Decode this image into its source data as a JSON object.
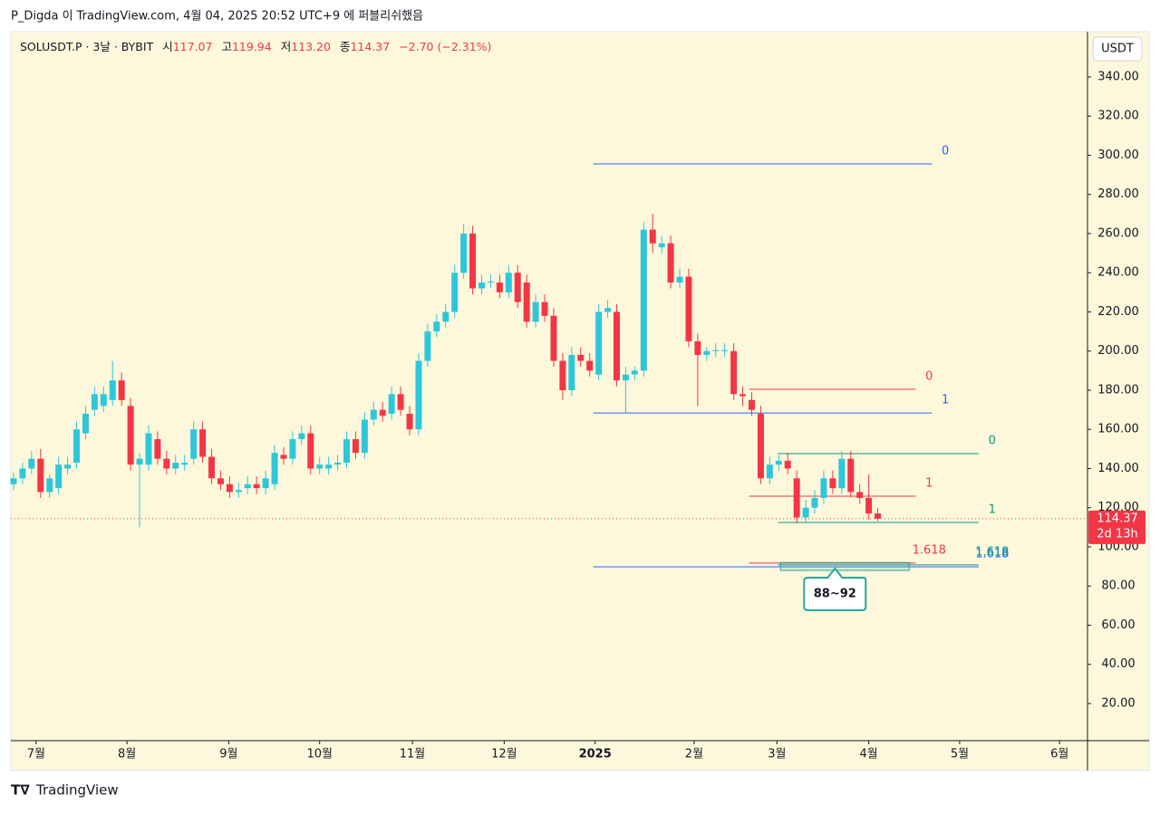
{
  "header": {
    "published": "P_Digda 이 TradingView.com, 4월 04, 2025 20:52 UTC+9 에 퍼블리쉬했음"
  },
  "footer": {
    "brand": "TradingView"
  },
  "chart_data": {
    "type": "candlestick",
    "legend": {
      "symbol": "SOLUSDT.P · 3날 · BYBIT",
      "open_label": "시",
      "open": "117.07",
      "high_label": "고",
      "high": "119.94",
      "low_label": "저",
      "low": "113.20",
      "close_label": "종",
      "close": "114.37",
      "change": "−2.70 (−2.31%)"
    },
    "currency": "USDT",
    "countdown": "2d 13h",
    "up_color": "#2ec7da",
    "down_color": "#f23645",
    "background": "#fdf8dc",
    "open": [
      132,
      135,
      140,
      145,
      128,
      130,
      140,
      143,
      158,
      170,
      172,
      175,
      185,
      172,
      142,
      142,
      155,
      145,
      140,
      142,
      145,
      160,
      146,
      135,
      132,
      128,
      130,
      132,
      130,
      132,
      147,
      145,
      155,
      158,
      140,
      140,
      142,
      143,
      155,
      148,
      165,
      170,
      168,
      178,
      168,
      160,
      195,
      210,
      215,
      220,
      240,
      260,
      232,
      235,
      235,
      230,
      240,
      235,
      215,
      225,
      218,
      195,
      180,
      198,
      195,
      188,
      220,
      220,
      185,
      188,
      190,
      262,
      253,
      255,
      235,
      238,
      205,
      198,
      200,
      200,
      200,
      178,
      175,
      168,
      135,
      142,
      144,
      135,
      115,
      120,
      125,
      135,
      130,
      145,
      128,
      125,
      117.07
    ],
    "high": [
      138,
      143,
      149,
      150,
      137,
      146,
      146,
      164,
      172,
      182,
      182,
      195,
      189,
      176,
      148,
      162,
      159,
      149,
      147,
      147,
      164,
      164,
      150,
      139,
      136,
      133,
      136,
      136,
      139,
      152,
      151,
      159,
      162,
      162,
      146,
      146,
      147,
      159,
      159,
      169,
      174,
      174,
      182,
      182,
      172,
      199,
      214,
      219,
      224,
      244,
      265,
      264,
      239,
      239,
      239,
      244,
      244,
      239,
      229,
      229,
      222,
      199,
      202,
      202,
      199,
      224,
      226,
      224,
      192,
      192,
      266,
      270,
      259,
      259,
      242,
      242,
      209,
      202,
      204,
      204,
      204,
      182,
      179,
      172,
      146,
      147,
      148,
      139,
      124,
      129,
      139,
      139,
      149,
      149,
      132,
      137,
      119.94
    ],
    "low": [
      129,
      132,
      137,
      125,
      125,
      127,
      137,
      140,
      155,
      167,
      169,
      172,
      172,
      139,
      110,
      139,
      142,
      137,
      137,
      139,
      142,
      143,
      132,
      129,
      125,
      125,
      127,
      127,
      127,
      129,
      142,
      142,
      152,
      137,
      137,
      137,
      139,
      140,
      145,
      145,
      162,
      164,
      165,
      167,
      157,
      157,
      192,
      207,
      212,
      217,
      237,
      229,
      229,
      232,
      227,
      227,
      222,
      212,
      212,
      215,
      192,
      175,
      177,
      192,
      187,
      185,
      217,
      182,
      168,
      185,
      187,
      250,
      250,
      232,
      232,
      202,
      172,
      195,
      197,
      197,
      175,
      172,
      167,
      132,
      132,
      139,
      137,
      112,
      112,
      117,
      122,
      127,
      127,
      125,
      122,
      114,
      113.2
    ],
    "close": [
      135,
      140,
      145,
      128,
      135,
      142,
      142,
      160,
      168,
      178,
      178,
      185,
      175,
      142,
      145,
      158,
      145,
      140,
      143,
      143,
      160,
      146,
      135,
      132,
      128,
      129,
      132,
      130,
      135,
      148,
      145,
      155,
      158,
      140,
      142,
      142,
      143,
      155,
      148,
      165,
      170,
      167,
      178,
      170,
      160,
      195,
      210,
      215,
      220,
      240,
      260,
      232,
      235,
      235.5,
      230,
      240,
      225,
      215,
      225,
      218,
      195,
      180,
      198,
      195,
      190,
      220,
      222,
      185,
      188,
      190,
      262,
      255,
      255,
      235,
      238,
      205,
      198,
      200,
      200.5,
      200.5,
      178,
      177,
      170,
      135,
      142,
      144,
      140,
      115,
      120,
      125,
      135,
      130,
      145,
      128,
      125,
      117,
      114.37
    ],
    "xlim": [
      -0.3,
      119.3
    ],
    "xticks": [
      {
        "value": 2.5,
        "label": "7월"
      },
      {
        "value": 12.6,
        "label": "8월"
      },
      {
        "value": 23.9,
        "label": "9월"
      },
      {
        "value": 34.0,
        "label": "10월"
      },
      {
        "value": 44.3,
        "label": "11월"
      },
      {
        "value": 54.5,
        "label": "12월"
      },
      {
        "value": 64.6,
        "label": "2025"
      },
      {
        "value": 75.6,
        "label": "2월"
      },
      {
        "value": 84.8,
        "label": "3월"
      },
      {
        "value": 95.0,
        "label": "4월"
      },
      {
        "value": 105.1,
        "label": "5월"
      },
      {
        "value": 116.2,
        "label": "6월"
      }
    ],
    "ylim": [
      1.04,
      363.1
    ],
    "yticks": [
      {
        "value": 20,
        "label": "20.00"
      },
      {
        "value": 40,
        "label": "40.00"
      },
      {
        "value": 60,
        "label": "60.00"
      },
      {
        "value": 80,
        "label": "80.00"
      },
      {
        "value": 100,
        "label": "100.00"
      },
      {
        "value": 120,
        "label": "120.00"
      },
      {
        "value": 140,
        "label": "140.00"
      },
      {
        "value": 160,
        "label": "160.00"
      },
      {
        "value": 180,
        "label": "180.00"
      },
      {
        "value": 200,
        "label": "200.00"
      },
      {
        "value": 220,
        "label": "220.00"
      },
      {
        "value": 240,
        "label": "240.00"
      },
      {
        "value": 260,
        "label": "260.00"
      },
      {
        "value": 280,
        "label": "280.00"
      },
      {
        "value": 300,
        "label": "300.00"
      },
      {
        "value": 320,
        "label": "320.00"
      },
      {
        "value": 340,
        "label": "340.00"
      }
    ],
    "fibs": [
      {
        "color": "#2962ff",
        "levels": [
          {
            "label": "0",
            "price": 295.6,
            "x": [
              64.4,
              102.0
            ]
          },
          {
            "label": "1",
            "price": 168.4,
            "x": [
              64.4,
              102.0
            ]
          },
          {
            "label": "1.618",
            "price": 89.8,
            "x": [
              64.4,
              107.2
            ]
          }
        ]
      },
      {
        "color": "#f23645",
        "levels": [
          {
            "label": "0",
            "price": 180.5,
            "x": [
              81.7,
              100.2
            ]
          },
          {
            "label": "1",
            "price": 125.9,
            "x": [
              81.7,
              100.2
            ]
          },
          {
            "label": "1.618",
            "price": 91.7,
            "x": [
              81.7,
              100.2
            ]
          }
        ]
      },
      {
        "color": "#089981",
        "levels": [
          {
            "label": "0",
            "price": 147.6,
            "x": [
              84.9,
              107.2
            ]
          },
          {
            "label": "1",
            "price": 112.5,
            "x": [
              84.9,
              107.2
            ]
          },
          {
            "label": "1.618",
            "price": 90.8,
            "x": [
              84.9,
              107.2
            ]
          }
        ]
      }
    ],
    "zone": {
      "text": "88~92",
      "range": [
        88,
        92
      ],
      "x": [
        85.2,
        99.5
      ],
      "color": "#26a69a"
    }
  }
}
